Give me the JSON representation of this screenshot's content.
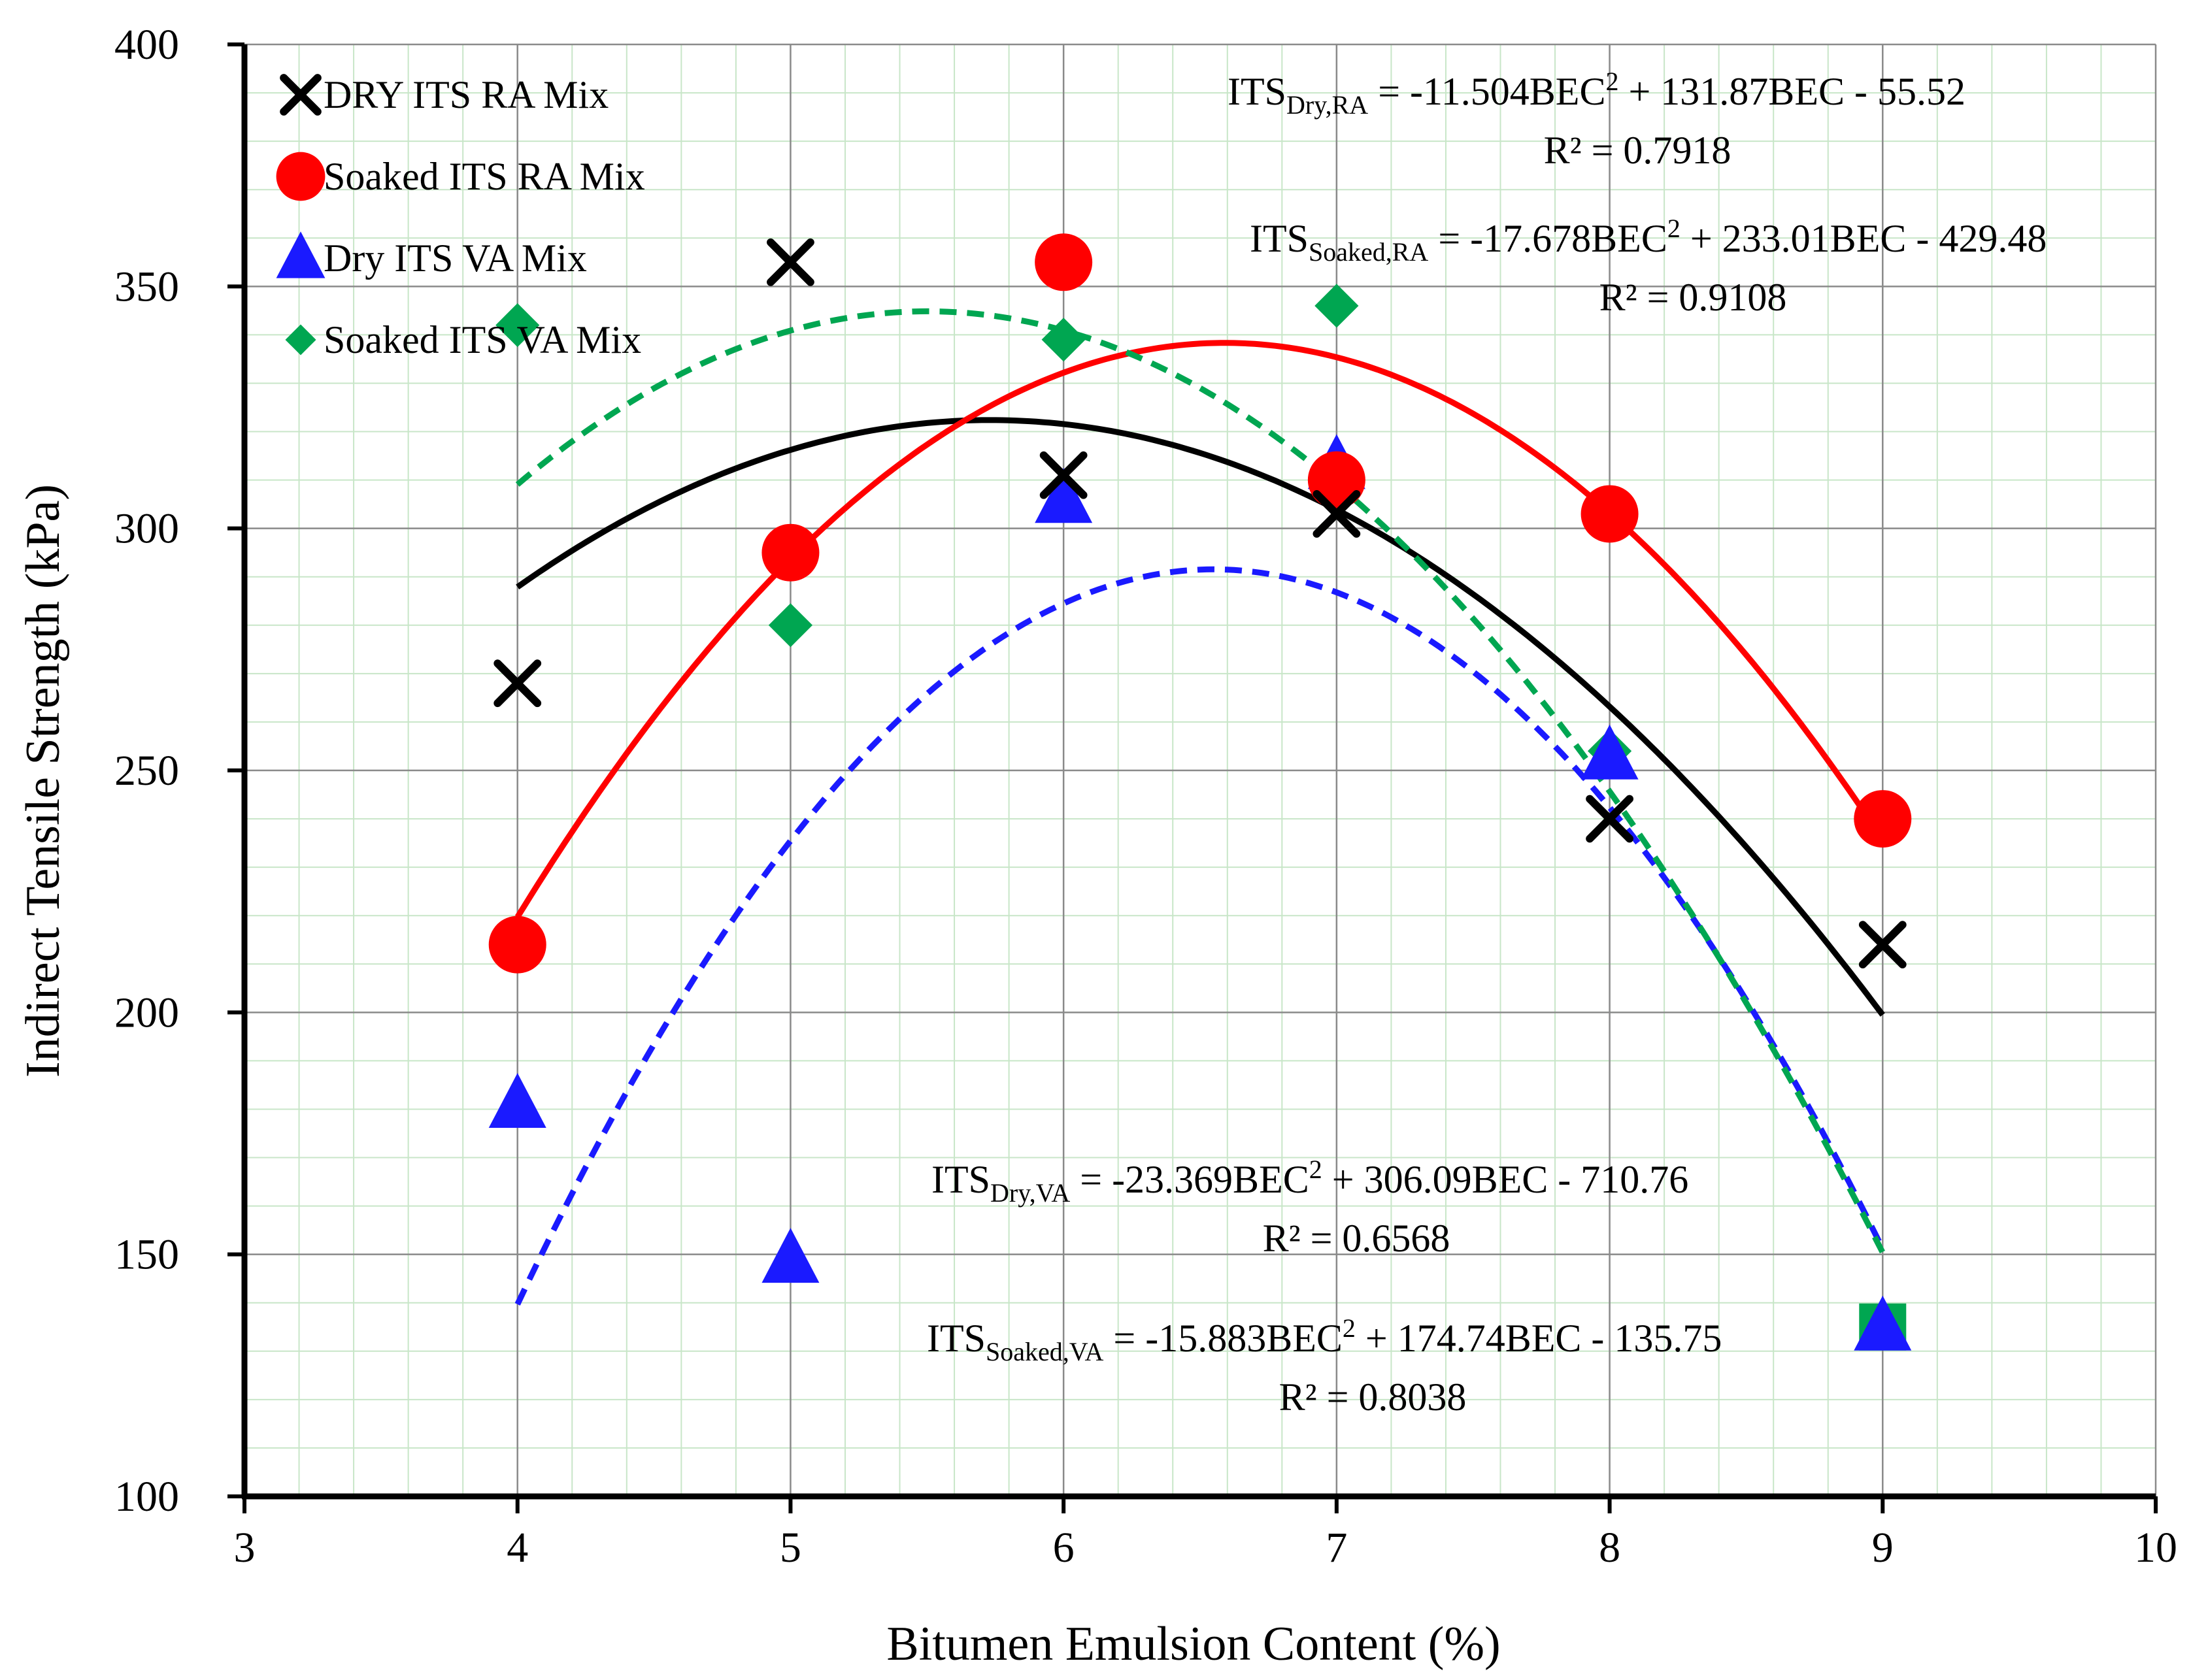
{
  "chart_data": {
    "type": "scatter",
    "xlabel": "Bitumen Emulsion Content (%)",
    "ylabel": "Indirect Tensile Strength (kPa)",
    "xlim": [
      3,
      10
    ],
    "ylim": [
      100,
      400
    ],
    "x_ticks": [
      "3",
      "4",
      "5",
      "6",
      "7",
      "8",
      "9",
      "10"
    ],
    "y_ticks": [
      "100",
      "150",
      "200",
      "250",
      "300",
      "350",
      "400"
    ],
    "grid": true,
    "legend_position": "top-left",
    "series": [
      {
        "name": "DRY ITS RA Mix",
        "marker": "x",
        "color": "#000000",
        "x": [
          4,
          5,
          6,
          7,
          8,
          9
        ],
        "y": [
          268,
          355,
          311,
          303,
          240,
          214
        ],
        "trendline": {
          "a": -11.504,
          "b": 131.87,
          "c": -55.52,
          "style": "solid"
        }
      },
      {
        "name": "Soaked ITS RA Mix",
        "marker": "circle",
        "color": "#ff0000",
        "x": [
          4,
          5,
          6,
          7,
          8,
          9
        ],
        "y": [
          214,
          295,
          355,
          310,
          303,
          240
        ],
        "trendline": {
          "a": -17.678,
          "b": 233.01,
          "c": -429.48,
          "style": "solid"
        }
      },
      {
        "name": "Dry ITS VA Mix",
        "marker": "triangle",
        "color": "#1a1aff",
        "x": [
          4,
          5,
          6,
          7,
          8,
          9
        ],
        "y": [
          181,
          149,
          306,
          313,
          253,
          135
        ],
        "trendline": {
          "a": -23.369,
          "b": 306.09,
          "c": -710.76,
          "style": "dashed"
        }
      },
      {
        "name": "Soaked ITS VA Mix",
        "marker": "diamond",
        "color": "#00a651",
        "x": [
          4,
          5,
          6,
          7,
          8,
          9
        ],
        "y": [
          342,
          280,
          339,
          346,
          254,
          135
        ],
        "trendline": {
          "a": -15.883,
          "b": 174.74,
          "c": -135.75,
          "style": "dashed"
        }
      }
    ],
    "annotations": [
      {
        "name": "eq-dry-ra",
        "prefix": "ITS",
        "sub": "Dry,RA",
        "body": " = -11.504BEC",
        "sup": "2",
        "rest": " + 131.87BEC - 55.52",
        "r2": "R² = 0.7918"
      },
      {
        "name": "eq-soaked-ra",
        "prefix": "ITS",
        "sub": "Soaked,RA",
        "body": " = -17.678BEC",
        "sup": "2",
        "rest": " + 233.01BEC - 429.48",
        "r2": "R² = 0.9108"
      },
      {
        "name": "eq-dry-va",
        "prefix": "ITS",
        "sub": "Dry,VA",
        "body": " = -23.369BEC",
        "sup": "2",
        "rest": " + 306.09BEC - 710.76",
        "r2": "R² = 0.6568"
      },
      {
        "name": "eq-soaked-va",
        "prefix": "ITS",
        "sub": "Soaked,VA",
        "body": " = -15.883BEC",
        "sup": "2",
        "rest": " + 174.74BEC - 135.75",
        "r2": "R² = 0.8038"
      }
    ]
  }
}
